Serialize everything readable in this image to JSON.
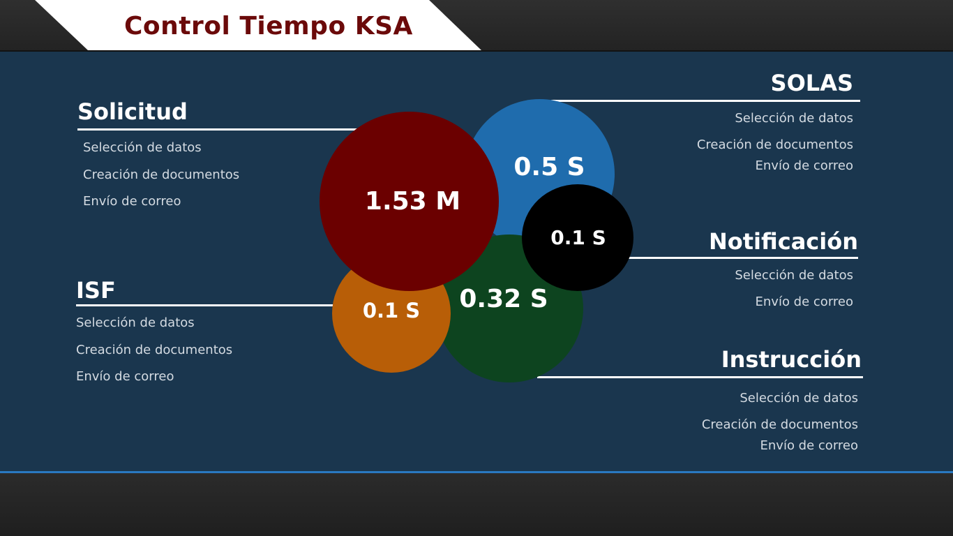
{
  "title": "Control Tiempo KSA",
  "groups": {
    "solicitud": {
      "title": "Solicitud",
      "items": [
        "Selección de datos",
        "Creación de documentos",
        "Envío de correo"
      ],
      "time": "1.53 M",
      "color": "#6b0000"
    },
    "solas": {
      "title": "SOLAS",
      "items": [
        "Selección de datos",
        "Creación de documentos",
        "Envío de correo"
      ],
      "time": "0.5 S",
      "color": "#1f6cad"
    },
    "notificacion": {
      "title": "Notificación",
      "items": [
        "Selección de datos",
        "Envío de correo"
      ],
      "time": "0.1 S",
      "color": "#000000"
    },
    "isf": {
      "title": "ISF",
      "items": [
        "Selección de datos",
        "Creación de documentos",
        "Envío de correo"
      ],
      "time": "0.1 S",
      "color": "#b85e07"
    },
    "instruccion": {
      "title": "Instrucción",
      "items": [
        "Selección de datos",
        "Creación de documentos",
        "Envío de correo"
      ],
      "time": "0.32 S",
      "color": "#0d441f"
    }
  }
}
